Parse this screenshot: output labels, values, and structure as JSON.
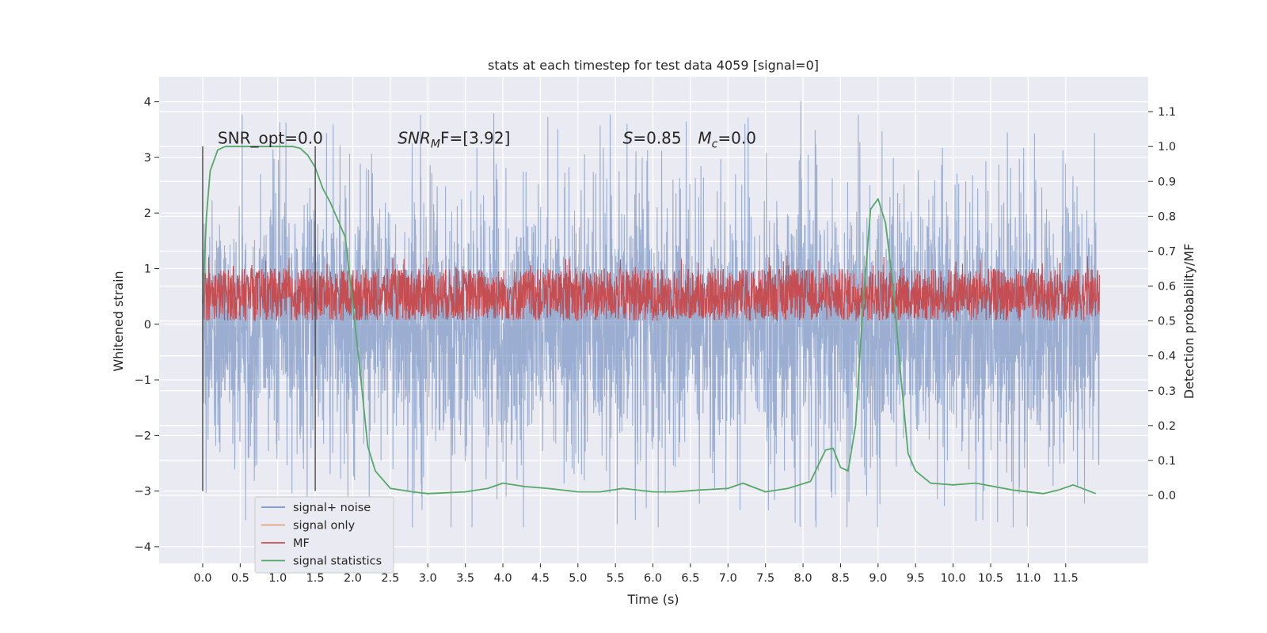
{
  "chart_data": {
    "type": "line",
    "title": "stats at each timestep for test data 4059 [signal=0]",
    "xlabel": "Time (s)",
    "ylabel": "Whitened strain",
    "y2label": "Detection probability/MF",
    "xlim": [
      -0.58,
      12.6
    ],
    "ylim": [
      -4.3,
      4.45
    ],
    "y2lim": [
      -0.195,
      1.2
    ],
    "grid": true,
    "legend_position": "lower-left",
    "x_ticks": [
      0.0,
      0.5,
      1.0,
      1.5,
      2.0,
      2.5,
      3.0,
      3.5,
      4.0,
      4.5,
      5.0,
      5.5,
      6.0,
      6.5,
      7.0,
      7.5,
      8.0,
      8.5,
      9.0,
      9.5,
      10.0,
      10.5,
      11.0,
      11.5
    ],
    "x_tick_labels": [
      "0.0",
      "0.5",
      "1.0",
      "1.5",
      "2.0",
      "2.5",
      "3.0",
      "3.5",
      "4.0",
      "4.5",
      "5.0",
      "5.5",
      "6.0",
      "6.5",
      "7.0",
      "7.5",
      "8.0",
      "8.5",
      "9.0",
      "9.5",
      "10.0",
      "10.5",
      "11.0",
      "11.5"
    ],
    "y_ticks": [
      -4,
      -3,
      -2,
      -1,
      0,
      1,
      2,
      3,
      4
    ],
    "y_tick_labels": [
      "−4",
      "−3",
      "−2",
      "−1",
      "0",
      "1",
      "2",
      "3",
      "4"
    ],
    "y2_ticks": [
      0.0,
      0.1,
      0.2,
      0.3,
      0.4,
      0.5,
      0.6,
      0.7,
      0.8,
      0.9,
      1.0,
      1.1
    ],
    "y2_tick_labels": [
      "0.0",
      "0.1",
      "0.2",
      "0.3",
      "0.4",
      "0.5",
      "0.6",
      "0.7",
      "0.8",
      "0.9",
      "1.0",
      "1.1"
    ],
    "annotations": [
      {
        "text": "SNR_opt=0.0",
        "x": 0.2,
        "y": 3.25
      },
      {
        "text": "SNR",
        "sub": "M",
        "rest": "F=[3.92]",
        "x": 2.6,
        "y": 3.25
      },
      {
        "text": "S",
        "rest": "=0.85",
        "x": 5.6,
        "y": 3.25
      },
      {
        "text": "M",
        "sub": "c",
        "rest": "=0.0",
        "x": 6.6,
        "y": 3.25
      }
    ],
    "vlines": [
      {
        "x": 0.0,
        "y_from": -3.0,
        "y_to": 3.2
      },
      {
        "x": 1.5,
        "y_from": -3.0,
        "y_to": 3.2
      }
    ],
    "series": [
      {
        "name": "signal+ noise",
        "axis": "left",
        "color": "#4c72b0",
        "alpha": 0.5,
        "kind": "noise",
        "x_range": [
          0.0,
          11.95
        ],
        "y_range": [
          -3.65,
          4.1
        ]
      },
      {
        "name": "signal only",
        "axis": "left",
        "color": "#dd8452",
        "alpha": 0.5,
        "values": []
      },
      {
        "name": "MF",
        "axis": "right",
        "color": "#c44e52",
        "kind": "noise",
        "x_range": [
          0.0,
          11.95
        ],
        "y_range": [
          0.5,
          0.65
        ]
      },
      {
        "name": "signal statistics",
        "axis": "right",
        "color": "#55a868",
        "x": [
          0.0,
          0.05,
          0.1,
          0.2,
          0.3,
          0.5,
          0.8,
          1.0,
          1.2,
          1.3,
          1.4,
          1.5,
          1.6,
          1.7,
          1.8,
          1.9,
          2.0,
          2.1,
          2.2,
          2.3,
          2.5,
          2.8,
          3.0,
          3.5,
          3.8,
          4.0,
          4.3,
          4.6,
          5.0,
          5.3,
          5.6,
          6.0,
          6.3,
          6.6,
          7.0,
          7.2,
          7.5,
          7.8,
          8.1,
          8.3,
          8.4,
          8.5,
          8.6,
          8.7,
          8.8,
          8.9,
          9.0,
          9.1,
          9.2,
          9.3,
          9.4,
          9.5,
          9.7,
          10.0,
          10.3,
          10.8,
          11.2,
          11.4,
          11.6,
          11.9
        ],
        "values": [
          0.55,
          0.8,
          0.93,
          0.99,
          1.0,
          1.0,
          1.0,
          1.0,
          1.0,
          0.995,
          0.975,
          0.94,
          0.88,
          0.84,
          0.79,
          0.74,
          0.55,
          0.35,
          0.14,
          0.07,
          0.02,
          0.01,
          0.005,
          0.01,
          0.02,
          0.035,
          0.025,
          0.02,
          0.01,
          0.01,
          0.02,
          0.01,
          0.01,
          0.015,
          0.02,
          0.035,
          0.01,
          0.02,
          0.04,
          0.13,
          0.135,
          0.08,
          0.07,
          0.2,
          0.55,
          0.82,
          0.85,
          0.78,
          0.6,
          0.35,
          0.12,
          0.07,
          0.035,
          0.03,
          0.035,
          0.015,
          0.005,
          0.015,
          0.03,
          0.005
        ]
      }
    ]
  }
}
